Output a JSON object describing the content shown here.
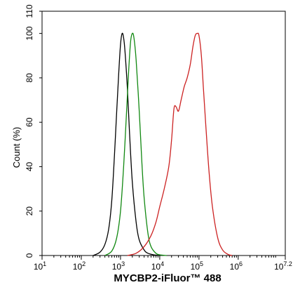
{
  "chart_data": {
    "type": "line",
    "xlabel": "MYCBP2-iFluor™ 488",
    "ylabel": "Count  (%)",
    "x_scale": "log",
    "xlim": [
      10,
      15848932
    ],
    "ylim": [
      0,
      110
    ],
    "x_ticks": [
      {
        "value": 10,
        "base": "10",
        "exp": "1"
      },
      {
        "value": 100,
        "base": "10",
        "exp": "2"
      },
      {
        "value": 1000,
        "base": "10",
        "exp": "3"
      },
      {
        "value": 10000,
        "base": "10",
        "exp": "4"
      },
      {
        "value": 100000,
        "base": "10",
        "exp": "5"
      },
      {
        "value": 1000000,
        "base": "10",
        "exp": "6"
      },
      {
        "value": 15848932,
        "base": "10",
        "exp": "7.2"
      }
    ],
    "y_ticks": [
      {
        "value": 0,
        "label": "0"
      },
      {
        "value": 20,
        "label": "20"
      },
      {
        "value": 40,
        "label": "40"
      },
      {
        "value": 60,
        "label": "60"
      },
      {
        "value": 80,
        "label": "80"
      },
      {
        "value": 100,
        "label": "100"
      },
      {
        "value": 110,
        "label": "110"
      }
    ],
    "grid": false,
    "legend": "none",
    "series": [
      {
        "color": "#000000",
        "x": [
          200,
          300,
          400,
          500,
          600,
          700,
          800,
          900,
          1000,
          1100,
          1200,
          1300,
          1500,
          1700,
          2000,
          2500,
          3000,
          4000,
          5000,
          7000,
          10000
        ],
        "y": [
          0,
          1.5,
          5,
          12,
          25,
          45,
          65,
          82,
          95,
          100,
          98,
          92,
          75,
          55,
          33,
          15,
          7,
          2.5,
          1,
          0.3,
          0
        ]
      },
      {
        "color": "#118811",
        "x": [
          400,
          600,
          800,
          1000,
          1200,
          1400,
          1600,
          1800,
          2000,
          2200,
          2500,
          3000,
          3500,
          4000,
          5000,
          6000,
          8000,
          10000,
          15000
        ],
        "y": [
          0,
          2,
          8,
          20,
          40,
          62,
          82,
          96,
          100,
          98,
          88,
          65,
          42,
          26,
          10,
          4,
          1,
          0.3,
          0
        ]
      },
      {
        "color": "#cc2222",
        "x": [
          1500,
          2500,
          4000,
          6000,
          8000,
          10000,
          13000,
          17000,
          20000,
          23000,
          26000,
          30000,
          35000,
          42000,
          50000,
          60000,
          70000,
          80000,
          90000,
          100000,
          115000,
          130000,
          150000,
          180000,
          220000,
          300000,
          400000,
          550000,
          700000
        ],
        "y": [
          0,
          1,
          4,
          9,
          15,
          22,
          30,
          40,
          52,
          66,
          67,
          65,
          70,
          76,
          80,
          86,
          94,
          99,
          100,
          99,
          90,
          75,
          58,
          38,
          22,
          8,
          2.5,
          0.5,
          0
        ]
      }
    ]
  }
}
